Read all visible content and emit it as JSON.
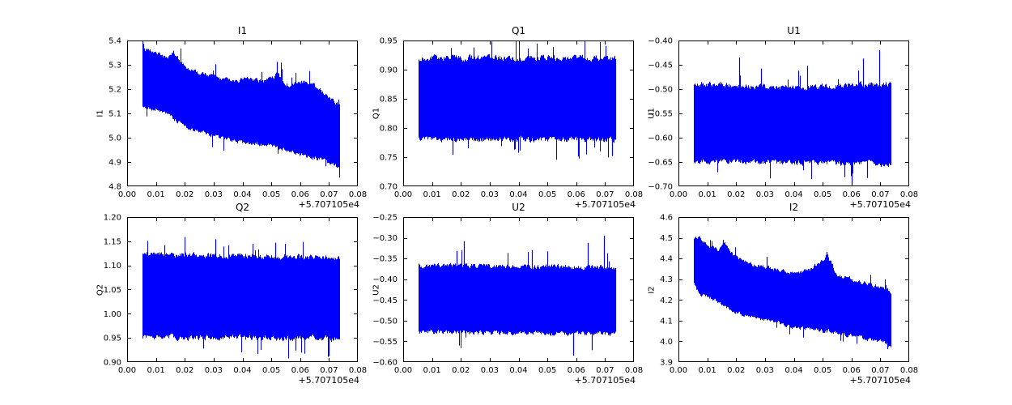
{
  "figure": {
    "background": "#ffffff",
    "grid": "2 rows x 3 cols",
    "line_color": "#0000ff",
    "axes_color": "#000000"
  },
  "chart_data": [
    {
      "type": "line",
      "title": "I1",
      "ylabel": "I1",
      "color": "#0000ff",
      "xlim": [
        0,
        0.08
      ],
      "xtick_values": [
        0,
        0.01,
        0.02,
        0.03,
        0.04,
        0.05,
        0.06,
        0.07,
        0.08
      ],
      "xtick_labels": [
        "0.00",
        "0.01",
        "0.02",
        "0.03",
        "0.04",
        "0.05",
        "0.06",
        "0.07",
        "0.08"
      ],
      "x_offset": "+5.707105e4",
      "ylim": [
        4.8,
        5.4
      ],
      "ytick_values": [
        4.8,
        4.9,
        5.0,
        5.1,
        5.2,
        5.3,
        5.4
      ],
      "ytick_labels": [
        "4.8",
        "4.9",
        "5.0",
        "5.1",
        "5.2",
        "5.3",
        "5.4"
      ],
      "x_data_range": [
        0.0054,
        0.0735
      ],
      "envelope": {
        "x": [
          0.0054,
          0.006,
          0.01,
          0.014,
          0.016,
          0.02,
          0.024,
          0.03,
          0.036,
          0.042,
          0.048,
          0.052,
          0.056,
          0.06,
          0.064,
          0.068,
          0.0735
        ],
        "top": [
          5.4,
          5.37,
          5.36,
          5.33,
          5.36,
          5.3,
          5.28,
          5.26,
          5.24,
          5.25,
          5.24,
          5.27,
          5.22,
          5.24,
          5.23,
          5.19,
          5.14
        ],
        "bottom": [
          5.12,
          5.12,
          5.11,
          5.09,
          5.07,
          5.04,
          5.02,
          5.0,
          4.98,
          4.97,
          4.96,
          4.95,
          4.94,
          4.92,
          4.91,
          4.9,
          4.87
        ]
      },
      "spikes": [
        {
          "x": 0.0305,
          "y": 5.302
        },
        {
          "x": 0.052,
          "y": 5.312
        },
        {
          "x": 0.0535,
          "y": 5.282
        },
        {
          "x": 0.0465,
          "y": 5.27
        }
      ]
    },
    {
      "type": "line",
      "title": "Q1",
      "ylabel": "Q1",
      "color": "#0000ff",
      "xlim": [
        0,
        0.08
      ],
      "xtick_values": [
        0,
        0.01,
        0.02,
        0.03,
        0.04,
        0.05,
        0.06,
        0.07,
        0.08
      ],
      "xtick_labels": [
        "0.00",
        "0.01",
        "0.02",
        "0.03",
        "0.04",
        "0.05",
        "0.06",
        "0.07",
        "0.08"
      ],
      "x_offset": "+5.707105e4",
      "ylim": [
        0.7,
        0.95
      ],
      "ytick_values": [
        0.7,
        0.75,
        0.8,
        0.85,
        0.9,
        0.95
      ],
      "ytick_labels": [
        "0.70",
        "0.75",
        "0.80",
        "0.85",
        "0.90",
        "0.95"
      ],
      "x_data_range": [
        0.0054,
        0.0735
      ],
      "envelope": {
        "x": [
          0.0054,
          0.0735
        ],
        "top": [
          0.925,
          0.924
        ],
        "bottom": [
          0.776,
          0.775
        ]
      },
      "spikes": [
        {
          "x": 0.0305,
          "y": 0.948
        },
        {
          "x": 0.0245,
          "y": 0.938
        },
        {
          "x": 0.017,
          "y": 0.754
        },
        {
          "x": 0.0605,
          "y": 0.751
        },
        {
          "x": 0.0725,
          "y": 0.752
        }
      ]
    },
    {
      "type": "line",
      "title": "U1",
      "ylabel": "U1",
      "color": "#0000ff",
      "xlim": [
        0,
        0.08
      ],
      "xtick_values": [
        0,
        0.01,
        0.02,
        0.03,
        0.04,
        0.05,
        0.06,
        0.07,
        0.08
      ],
      "xtick_labels": [
        "0.00",
        "0.01",
        "0.02",
        "0.03",
        "0.04",
        "0.05",
        "0.06",
        "0.07",
        "0.08"
      ],
      "x_offset": "+5.707105e4",
      "ylim": [
        -0.7,
        -0.4
      ],
      "ytick_values": [
        -0.7,
        -0.65,
        -0.6,
        -0.55,
        -0.5,
        -0.45,
        -0.4
      ],
      "ytick_labels": [
        "−0.70",
        "−0.65",
        "−0.60",
        "−0.55",
        "−0.50",
        "−0.45",
        "−0.40"
      ],
      "x_data_range": [
        0.0054,
        0.0735
      ],
      "envelope": {
        "x": [
          0.0054,
          0.035,
          0.0735
        ],
        "top": [
          -0.483,
          -0.493,
          -0.484
        ],
        "bottom": [
          -0.653,
          -0.655,
          -0.66
        ]
      },
      "spikes": [
        {
          "x": 0.021,
          "y": -0.435
        },
        {
          "x": 0.0285,
          "y": -0.458
        },
        {
          "x": 0.0445,
          "y": -0.452
        },
        {
          "x": 0.0415,
          "y": -0.462
        },
        {
          "x": 0.064,
          "y": -0.437
        },
        {
          "x": 0.0695,
          "y": -0.42
        },
        {
          "x": 0.06,
          "y": -0.7
        },
        {
          "x": 0.0575,
          "y": -0.681
        },
        {
          "x": 0.0655,
          "y": -0.683
        }
      ]
    },
    {
      "type": "line",
      "title": "Q2",
      "ylabel": "Q2",
      "color": "#0000ff",
      "xlim": [
        0,
        0.08
      ],
      "xtick_values": [
        0,
        0.01,
        0.02,
        0.03,
        0.04,
        0.05,
        0.06,
        0.07,
        0.08
      ],
      "xtick_labels": [
        "0.00",
        "0.01",
        "0.02",
        "0.03",
        "0.04",
        "0.05",
        "0.06",
        "0.07",
        "0.08"
      ],
      "x_offset": "+5.707105e4",
      "ylim": [
        0.9,
        1.2
      ],
      "ytick_values": [
        0.9,
        0.95,
        1.0,
        1.05,
        1.1,
        1.15,
        1.2
      ],
      "ytick_labels": [
        "0.90",
        "0.95",
        "1.00",
        "1.05",
        "1.10",
        "1.15",
        "1.20"
      ],
      "x_data_range": [
        0.0054,
        0.0735
      ],
      "envelope": {
        "x": [
          0.0054,
          0.0735
        ],
        "top": [
          1.128,
          1.122
        ],
        "bottom": [
          0.947,
          0.943
        ]
      },
      "spikes": [
        {
          "x": 0.0305,
          "y": 1.154
        },
        {
          "x": 0.0515,
          "y": 1.147
        },
        {
          "x": 0.013,
          "y": 1.142
        },
        {
          "x": 0.07,
          "y": 0.912
        },
        {
          "x": 0.0585,
          "y": 0.924
        },
        {
          "x": 0.0265,
          "y": 0.928
        }
      ]
    },
    {
      "type": "line",
      "title": "U2",
      "ylabel": "U2",
      "color": "#0000ff",
      "xlim": [
        0,
        0.08
      ],
      "xtick_values": [
        0,
        0.01,
        0.02,
        0.03,
        0.04,
        0.05,
        0.06,
        0.07,
        0.08
      ],
      "xtick_labels": [
        "0.00",
        "0.01",
        "0.02",
        "0.03",
        "0.04",
        "0.05",
        "0.06",
        "0.07",
        "0.08"
      ],
      "x_offset": "+5.707105e4",
      "ylim": [
        -0.6,
        -0.25
      ],
      "ytick_values": [
        -0.6,
        -0.55,
        -0.5,
        -0.45,
        -0.4,
        -0.35,
        -0.3,
        -0.25
      ],
      "ytick_labels": [
        "−0.60",
        "−0.55",
        "−0.50",
        "−0.45",
        "−0.40",
        "−0.35",
        "−0.30",
        "−0.25"
      ],
      "x_data_range": [
        0.0054,
        0.0735
      ],
      "envelope": {
        "x": [
          0.0054,
          0.0735
        ],
        "top": [
          -0.362,
          -0.366
        ],
        "bottom": [
          -0.533,
          -0.537
        ]
      },
      "spikes": [
        {
          "x": 0.021,
          "y": -0.308
        },
        {
          "x": 0.0185,
          "y": -0.332
        },
        {
          "x": 0.0445,
          "y": -0.33
        },
        {
          "x": 0.064,
          "y": -0.312
        },
        {
          "x": 0.0695,
          "y": -0.295
        },
        {
          "x": 0.059,
          "y": -0.585
        },
        {
          "x": 0.0655,
          "y": -0.571
        }
      ]
    },
    {
      "type": "line",
      "title": "I2",
      "ylabel": "I2",
      "color": "#0000ff",
      "xlim": [
        0,
        0.08
      ],
      "xtick_values": [
        0,
        0.01,
        0.02,
        0.03,
        0.04,
        0.05,
        0.06,
        0.07,
        0.08
      ],
      "xtick_labels": [
        "0.00",
        "0.01",
        "0.02",
        "0.03",
        "0.04",
        "0.05",
        "0.06",
        "0.07",
        "0.08"
      ],
      "x_offset": "+5.707105e4",
      "ylim": [
        3.9,
        4.6
      ],
      "ytick_values": [
        3.9,
        4.0,
        4.1,
        4.2,
        4.3,
        4.4,
        4.5,
        4.6
      ],
      "ytick_labels": [
        "3.9",
        "4.0",
        "4.1",
        "4.2",
        "4.3",
        "4.4",
        "4.5",
        "4.6"
      ],
      "x_data_range": [
        0.0054,
        0.0735
      ],
      "envelope": {
        "x": [
          0.0054,
          0.007,
          0.01,
          0.014,
          0.0155,
          0.02,
          0.025,
          0.03,
          0.035,
          0.04,
          0.045,
          0.05,
          0.0515,
          0.055,
          0.06,
          0.065,
          0.07,
          0.0735
        ],
        "top": [
          4.5,
          4.51,
          4.47,
          4.45,
          4.49,
          4.41,
          4.38,
          4.37,
          4.35,
          4.34,
          4.35,
          4.4,
          4.43,
          4.33,
          4.31,
          4.29,
          4.27,
          4.25
        ],
        "bottom": [
          4.27,
          4.22,
          4.21,
          4.18,
          4.17,
          4.13,
          4.11,
          4.09,
          4.08,
          4.06,
          4.05,
          4.04,
          4.04,
          4.03,
          4.02,
          4.0,
          3.99,
          3.97
        ]
      },
      "spikes": [
        {
          "x": 0.0515,
          "y": 4.432
        },
        {
          "x": 0.0305,
          "y": 4.408
        },
        {
          "x": 0.0155,
          "y": 4.49
        },
        {
          "x": 0.0725,
          "y": 3.962
        }
      ]
    }
  ]
}
